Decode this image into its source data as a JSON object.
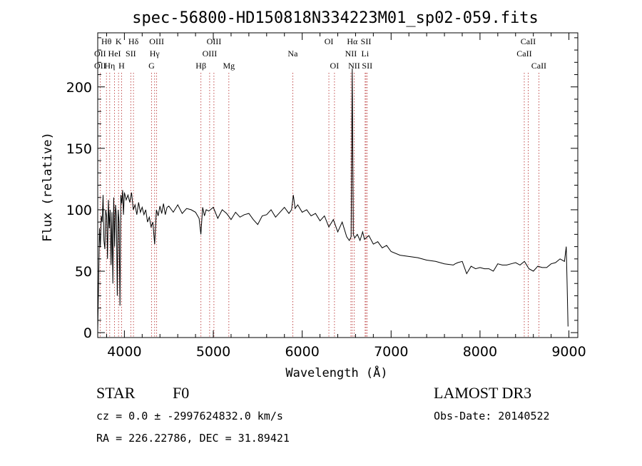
{
  "chart_data": {
    "type": "line",
    "title": "spec-56800-HD150818N334223M01_sp02-059.fits",
    "xlabel": "Wavelength (Å)",
    "ylabel": "Flux (relative)",
    "xlim": [
      3700,
      9100
    ],
    "ylim": [
      -4,
      244
    ],
    "x_ticks": [
      4000,
      5000,
      6000,
      7000,
      8000,
      9000
    ],
    "y_ticks": [
      0,
      50,
      100,
      150,
      200
    ],
    "grid": false,
    "series": [
      {
        "color": "#000000",
        "x": [
          3700,
          3710,
          3720,
          3730,
          3740,
          3750,
          3760,
          3770,
          3780,
          3790,
          3800,
          3810,
          3820,
          3830,
          3840,
          3850,
          3860,
          3870,
          3880,
          3890,
          3900,
          3910,
          3920,
          3930,
          3940,
          3950,
          3960,
          3970,
          3980,
          3990,
          4000,
          4020,
          4040,
          4060,
          4080,
          4100,
          4120,
          4140,
          4160,
          4180,
          4200,
          4220,
          4240,
          4260,
          4280,
          4300,
          4320,
          4340,
          4360,
          4380,
          4400,
          4420,
          4440,
          4460,
          4480,
          4500,
          4550,
          4600,
          4650,
          4700,
          4750,
          4800,
          4840,
          4860,
          4880,
          4900,
          4920,
          4950,
          5000,
          5050,
          5100,
          5150,
          5200,
          5250,
          5300,
          5350,
          5400,
          5450,
          5500,
          5550,
          5600,
          5650,
          5700,
          5750,
          5800,
          5850,
          5880,
          5900,
          5920,
          5950,
          6000,
          6050,
          6100,
          6150,
          6200,
          6250,
          6300,
          6350,
          6400,
          6450,
          6500,
          6530,
          6550,
          6563,
          6575,
          6590,
          6620,
          6650,
          6680,
          6700,
          6750,
          6800,
          6850,
          6900,
          6950,
          7000,
          7100,
          7200,
          7300,
          7400,
          7500,
          7600,
          7700,
          7720,
          7750,
          7800,
          7850,
          7900,
          7950,
          8000,
          8050,
          8100,
          8150,
          8200,
          8250,
          8300,
          8350,
          8400,
          8450,
          8500,
          8550,
          8600,
          8650,
          8700,
          8750,
          8800,
          8850,
          8900,
          8950,
          8970,
          8980,
          8990
        ],
        "y": [
          2,
          40,
          85,
          70,
          95,
          90,
          112,
          75,
          68,
          100,
          95,
          60,
          108,
          85,
          100,
          55,
          98,
          40,
          110,
          70,
          104,
          95,
          30,
          100,
          90,
          22,
          112,
          105,
          116,
          96,
          114,
          108,
          112,
          106,
          114,
          100,
          104,
          96,
          106,
          98,
          102,
          96,
          100,
          90,
          94,
          86,
          90,
          72,
          100,
          95,
          103,
          97,
          105,
          96,
          102,
          103,
          98,
          104,
          97,
          101,
          100,
          98,
          93,
          80,
          102,
          95,
          100,
          99,
          102,
          93,
          100,
          97,
          92,
          98,
          94,
          96,
          97,
          92,
          88,
          95,
          96,
          100,
          94,
          98,
          102,
          97,
          100,
          112,
          101,
          104,
          98,
          100,
          95,
          97,
          91,
          95,
          86,
          92,
          82,
          90,
          78,
          75,
          78,
          215,
          80,
          77,
          80,
          75,
          82,
          76,
          79,
          72,
          74,
          69,
          71,
          66,
          63,
          62,
          61,
          59,
          58,
          56,
          55,
          56,
          57,
          58,
          48,
          54,
          52,
          53,
          52,
          52,
          50,
          56,
          55,
          55,
          56,
          57,
          55,
          58,
          52,
          50,
          54,
          53,
          53,
          56,
          57,
          60,
          58,
          70,
          40,
          5
        ]
      }
    ],
    "lines": [
      {
        "label": "Hθ",
        "x": 3798,
        "row": 1
      },
      {
        "label": "OII",
        "x": 3727,
        "row": 2
      },
      {
        "label": "OII",
        "x": 3727,
        "row": 3
      },
      {
        "label": "Hη",
        "x": 3835,
        "row": 3
      },
      {
        "label": "HeI",
        "x": 3889,
        "row": 2
      },
      {
        "label": "K",
        "x": 3934,
        "row": 1
      },
      {
        "label": "SII",
        "x": 4072,
        "row": 2
      },
      {
        "label": "H",
        "x": 3968,
        "row": 3
      },
      {
        "label": "Hδ",
        "x": 4102,
        "row": 1
      },
      {
        "label": "OIII",
        "x": 4363,
        "row": 1
      },
      {
        "label": "Hγ",
        "x": 4340,
        "row": 2
      },
      {
        "label": "G",
        "x": 4305,
        "row": 3
      },
      {
        "label": "OIII",
        "x": 5007,
        "row": 1
      },
      {
        "label": "OIII",
        "x": 4959,
        "row": 2
      },
      {
        "label": "Hβ",
        "x": 4861,
        "row": 3
      },
      {
        "label": "Mg",
        "x": 5175,
        "row": 3
      },
      {
        "label": "Na",
        "x": 5894,
        "row": 2
      },
      {
        "label": "OI",
        "x": 6300,
        "row": 1
      },
      {
        "label": "OI",
        "x": 6363,
        "row": 3
      },
      {
        "label": "Hα",
        "x": 6563,
        "row": 1
      },
      {
        "label": "NII",
        "x": 6548,
        "row": 2
      },
      {
        "label": "NII",
        "x": 6584,
        "row": 3
      },
      {
        "label": "SII",
        "x": 6717,
        "row": 1
      },
      {
        "label": "Li",
        "x": 6708,
        "row": 2
      },
      {
        "label": "SII",
        "x": 6731,
        "row": 3
      },
      {
        "label": "CaII",
        "x": 8542,
        "row": 1
      },
      {
        "label": "CaII",
        "x": 8498,
        "row": 2
      },
      {
        "label": "CaII",
        "x": 8662,
        "row": 3
      }
    ],
    "line_color": "#b22222"
  },
  "footer": {
    "class_label": "STAR",
    "subclass": "F0",
    "survey": "LAMOST DR3",
    "cz": "cz = 0.0 ± -2997624832.0 km/s",
    "obs_date": "Obs-Date: 20140522",
    "coords": "RA = 226.22786, DEC =  31.89421"
  }
}
